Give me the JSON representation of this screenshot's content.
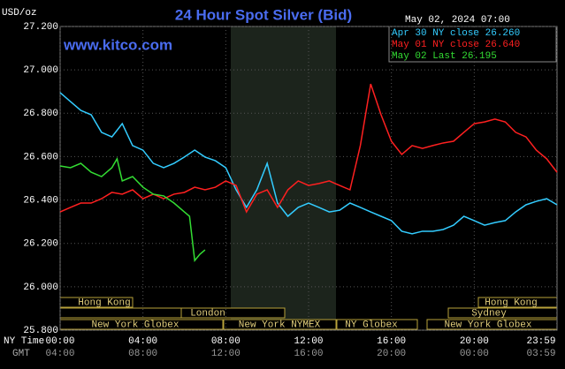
{
  "chart_data": {
    "type": "line",
    "title": "24 Hour Spot Silver (Bid)",
    "y_label": "USD/oz",
    "timestamp": "May 02, 2024 07:00",
    "source": "www.kitco.com",
    "x_label": "NY Time",
    "x2_label": "GMT",
    "xlim": [
      0,
      24
    ],
    "ylim": [
      25.8,
      27.2
    ],
    "yticks": [
      {
        "value": 25.8,
        "label": "25.800"
      },
      {
        "value": 26,
        "label": "26.000"
      },
      {
        "value": 26.2,
        "label": "26.200"
      },
      {
        "value": 26.4,
        "label": "26.400"
      },
      {
        "value": 26.6,
        "label": "26.600"
      },
      {
        "value": 26.8,
        "label": "26.800"
      },
      {
        "value": 27,
        "label": "27.000"
      },
      {
        "value": 27.2,
        "label": "27.200"
      }
    ],
    "xticks": [
      {
        "value": 0,
        "label": "00:00"
      },
      {
        "value": 4,
        "label": "04:00"
      },
      {
        "value": 8,
        "label": "08:00"
      },
      {
        "value": 12,
        "label": "12:00"
      },
      {
        "value": 16,
        "label": "16:00"
      },
      {
        "value": 20,
        "label": "20:00"
      },
      {
        "value": 23.98,
        "label": "23:59"
      }
    ],
    "x2ticks": [
      {
        "value": 0,
        "label": "04:00"
      },
      {
        "value": 4,
        "label": "08:00"
      },
      {
        "value": 8,
        "label": "12:00"
      },
      {
        "value": 12,
        "label": "16:00"
      },
      {
        "value": 16,
        "label": "20:00"
      },
      {
        "value": 20,
        "label": "00:00"
      },
      {
        "value": 23.98,
        "label": "03:59"
      }
    ],
    "grid": true,
    "sessions": [
      "Hong Kong",
      "London",
      "New York Globex",
      "New York NYMEX",
      "NY Globex",
      "Hong Kong",
      "Sydney",
      "New York Globex"
    ],
    "series": [
      {
        "name": "Apr 30 NY close 26.260",
        "color": "#33ccff",
        "x": [
          0,
          0.5,
          1,
          1.5,
          2,
          2.5,
          3,
          3.5,
          4,
          4.5,
          5,
          5.5,
          6,
          6.5,
          7,
          7.5,
          8,
          8.5,
          9,
          9.5,
          10,
          10.5,
          11,
          11.5,
          12,
          12.5,
          13,
          13.5,
          14,
          14.5,
          15,
          15.5,
          16,
          16.5,
          17,
          17.5,
          18,
          18.5,
          19,
          19.5,
          20,
          20.5,
          21,
          21.5,
          22,
          22.5,
          23,
          23.5,
          24
        ],
        "values": [
          26.895,
          26.854,
          26.813,
          26.793,
          26.712,
          26.691,
          26.752,
          26.651,
          26.63,
          26.569,
          26.549,
          26.569,
          26.598,
          26.63,
          26.598,
          26.581,
          26.549,
          26.447,
          26.366,
          26.447,
          26.569,
          26.386,
          26.325,
          26.366,
          26.386,
          26.366,
          26.345,
          26.353,
          26.386,
          26.366,
          26.345,
          26.325,
          26.305,
          26.256,
          26.244,
          26.256,
          26.256,
          26.264,
          26.284,
          26.325,
          26.305,
          26.284,
          26.296,
          26.305,
          26.345,
          26.378,
          26.394,
          26.406,
          26.378
        ]
      },
      {
        "name": "May 01 NY close 26.640",
        "color": "#ff2020",
        "x": [
          0,
          0.5,
          1,
          1.5,
          2,
          2.5,
          3,
          3.5,
          4,
          4.5,
          5,
          5.5,
          6,
          6.5,
          7,
          7.5,
          8,
          8.5,
          9,
          9.5,
          10,
          10.5,
          11,
          11.5,
          12,
          12.5,
          13,
          13.5,
          14,
          14.5,
          15,
          15.5,
          16,
          16.5,
          17,
          17.5,
          18,
          18.5,
          19,
          19.5,
          20,
          20.5,
          21,
          21.5,
          22,
          22.5,
          23,
          23.5,
          24
        ],
        "values": [
          26.345,
          26.366,
          26.386,
          26.386,
          26.406,
          26.435,
          26.427,
          26.447,
          26.406,
          26.427,
          26.406,
          26.427,
          26.435,
          26.459,
          26.447,
          26.459,
          26.488,
          26.467,
          26.345,
          26.427,
          26.447,
          26.366,
          26.447,
          26.488,
          26.467,
          26.476,
          26.488,
          26.467,
          26.447,
          26.651,
          26.935,
          26.793,
          26.671,
          26.61,
          26.651,
          26.638,
          26.651,
          26.663,
          26.671,
          26.712,
          26.752,
          26.76,
          26.773,
          26.76,
          26.712,
          26.691,
          26.63,
          26.59,
          26.528
        ]
      },
      {
        "name": "May 02 Last 26.195",
        "color": "#33dd33",
        "x": [
          0,
          0.5,
          1,
          1.5,
          2,
          2.5,
          2.75,
          3,
          3.5,
          4,
          4.5,
          5,
          5.5,
          6,
          6.25,
          6.5,
          6.75,
          7
        ],
        "values": [
          26.557,
          26.549,
          26.569,
          26.528,
          26.508,
          26.549,
          26.59,
          26.488,
          26.508,
          26.459,
          26.427,
          26.419,
          26.386,
          26.345,
          26.325,
          26.121,
          26.15,
          26.17
        ]
      }
    ]
  }
}
